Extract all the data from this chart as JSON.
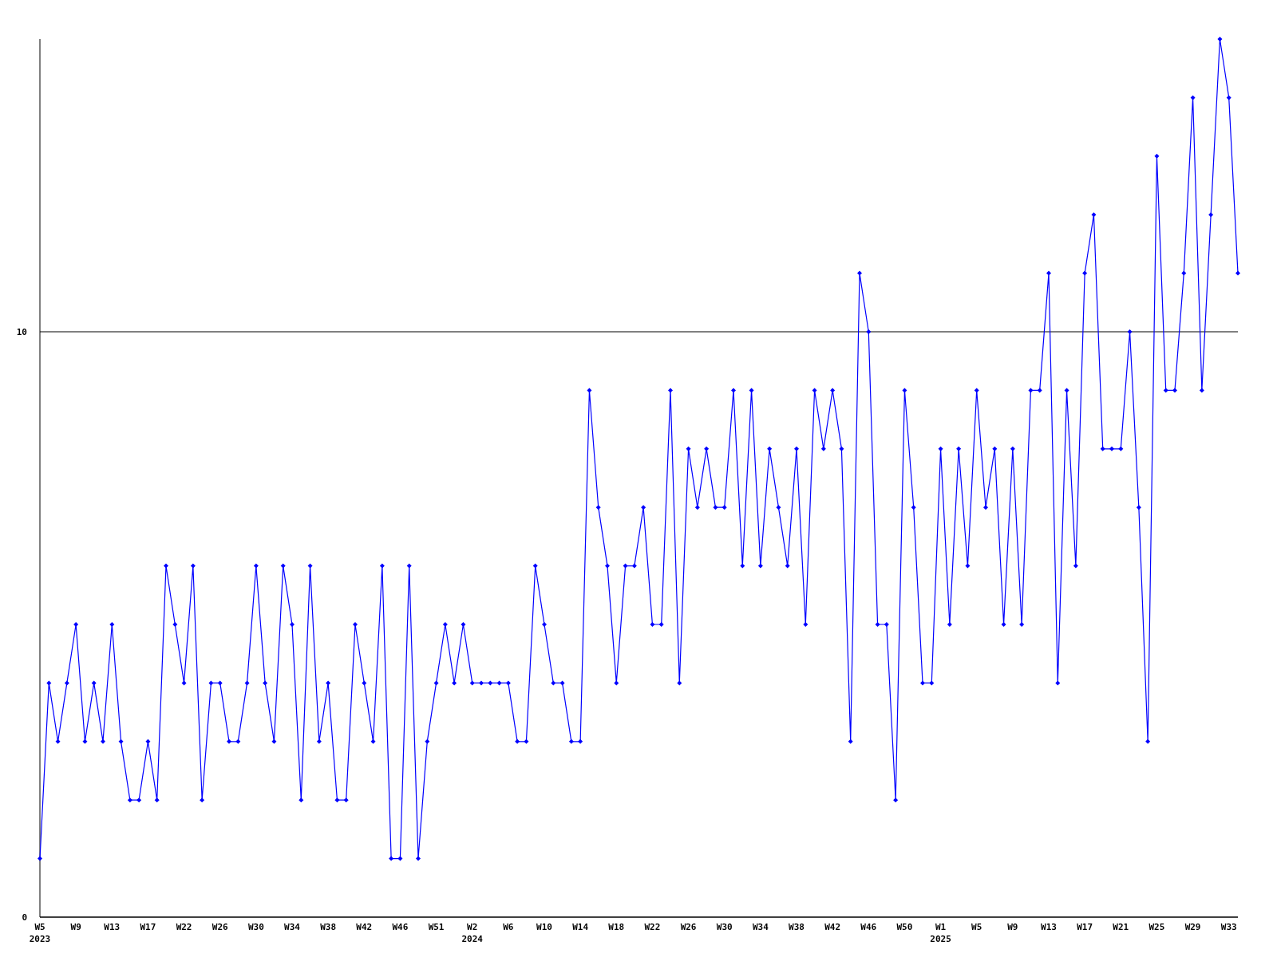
{
  "chart_data": {
    "type": "line",
    "categories": [
      "W5\n2023",
      null,
      null,
      null,
      "W9",
      null,
      null,
      null,
      "W13",
      null,
      null,
      null,
      "W17",
      null,
      null,
      null,
      "W22",
      null,
      null,
      null,
      "W26",
      null,
      null,
      null,
      "W30",
      null,
      null,
      null,
      "W34",
      null,
      null,
      null,
      "W38",
      null,
      null,
      null,
      "W42",
      null,
      null,
      null,
      "W46",
      null,
      null,
      null,
      "W51",
      null,
      null,
      null,
      "W2\n2024",
      null,
      null,
      null,
      "W6",
      null,
      null,
      null,
      "W10",
      null,
      null,
      null,
      "W14",
      null,
      null,
      null,
      "W18",
      null,
      null,
      null,
      "W22",
      null,
      null,
      null,
      "W26",
      null,
      null,
      null,
      "W30",
      null,
      null,
      null,
      "W34",
      null,
      null,
      null,
      "W38",
      null,
      null,
      null,
      "W42",
      null,
      null,
      null,
      "W46",
      null,
      null,
      null,
      "W50",
      null,
      null,
      null,
      "W1\n2025",
      null,
      null,
      null,
      "W5",
      null,
      null,
      null,
      "W9",
      null,
      null,
      null,
      "W13",
      null,
      null,
      null,
      "W17",
      null,
      null,
      null,
      "W21",
      null,
      null,
      null,
      "W25",
      null,
      null,
      null,
      "W29",
      null,
      null,
      null,
      "W33",
      null
    ],
    "series": [
      {
        "color": "#0000ff",
        "values": [
          1,
          4,
          3,
          4,
          5,
          3,
          4,
          3,
          5,
          3,
          2,
          2,
          3,
          2,
          6,
          5,
          4,
          6,
          2,
          4,
          4,
          3,
          3,
          4,
          6,
          4,
          3,
          6,
          5,
          2,
          6,
          3,
          4,
          2,
          2,
          5,
          4,
          3,
          6,
          1,
          1,
          6,
          1,
          3,
          4,
          5,
          4,
          5,
          4,
          4,
          4,
          4,
          4,
          3,
          3,
          6,
          5,
          4,
          4,
          3,
          3,
          9,
          7,
          6,
          4,
          6,
          6,
          7,
          5,
          5,
          9,
          4,
          8,
          7,
          8,
          7,
          7,
          9,
          6,
          9,
          6,
          8,
          7,
          6,
          8,
          5,
          9,
          8,
          9,
          8,
          3,
          11,
          10,
          5,
          5,
          2,
          9,
          7,
          4,
          4,
          8,
          5,
          8,
          6,
          9,
          7,
          8,
          5,
          8,
          5,
          9,
          9,
          11,
          4,
          9,
          6,
          11,
          12,
          8,
          8,
          8,
          10,
          7,
          3,
          13,
          9,
          9,
          11,
          14,
          9,
          12,
          15,
          14,
          11
        ]
      }
    ],
    "ylim": [
      0,
      15
    ],
    "yticks": [
      0,
      10
    ],
    "grid": "y",
    "marker": "diamond",
    "line_style": "solid"
  }
}
